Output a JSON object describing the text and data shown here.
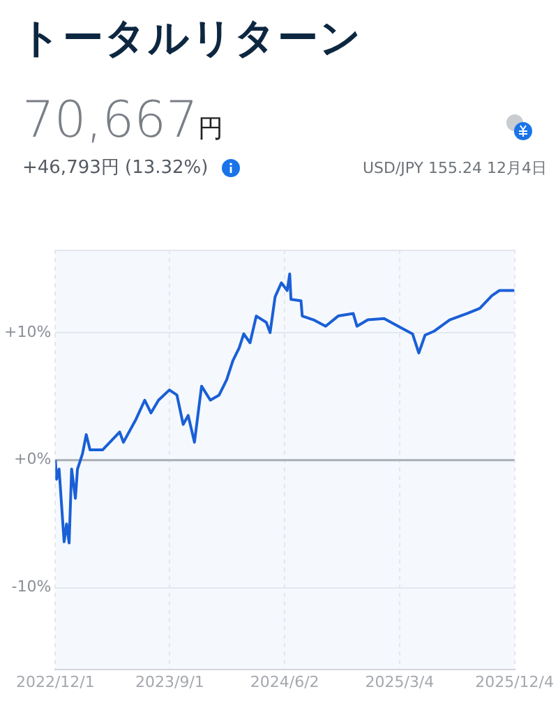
{
  "chart_data": {
    "type": "line",
    "title": "トータルリターン",
    "annotations": [
      "70,667円",
      "+46,793円 (13.32%)",
      "USD/JPY 155.24 12月4日"
    ],
    "x": [
      "2022-12-01",
      "2022-12-04",
      "2022-12-10",
      "2022-12-22",
      "2022-12-28",
      "2023-01-03",
      "2023-01-09",
      "2023-01-18",
      "2023-01-23",
      "2023-02-04",
      "2023-02-13",
      "2023-02-22",
      "2023-03-24",
      "2023-05-04",
      "2023-05-13",
      "2023-06-12",
      "2023-07-03",
      "2023-07-18",
      "2023-08-05",
      "2023-08-31",
      "2023-09-18",
      "2023-10-03",
      "2023-10-15",
      "2023-10-30",
      "2023-11-16",
      "2023-12-07",
      "2023-12-28",
      "2024-01-15",
      "2024-01-30",
      "2024-02-14",
      "2024-02-25",
      "2024-03-11",
      "2024-03-26",
      "2024-04-19",
      "2024-04-28",
      "2024-05-10",
      "2024-05-25",
      "2024-06-08",
      "2024-06-14",
      "2024-06-17",
      "2024-07-11",
      "2024-07-14",
      "2024-08-10",
      "2024-09-08",
      "2024-10-08",
      "2024-11-13",
      "2024-11-22",
      "2024-12-18",
      "2025-01-26",
      "2025-03-06",
      "2025-04-04",
      "2025-04-19",
      "2025-05-04",
      "2025-05-25",
      "2025-07-02",
      "2025-08-13",
      "2025-09-12",
      "2025-10-11",
      "2025-10-29",
      "2025-12-04"
    ],
    "series": [
      {
        "color": "#1a5fd6",
        "values": [
          0,
          -1.5,
          -0.7,
          -6.4,
          -5.0,
          -6.5,
          -0.7,
          -3.0,
          -0.7,
          0.5,
          2.0,
          0.8,
          0.8,
          2.2,
          1.4,
          3.2,
          4.7,
          3.7,
          4.7,
          5.5,
          5.1,
          2.8,
          3.5,
          1.4,
          5.8,
          4.7,
          5.1,
          6.3,
          7.8,
          8.8,
          9.9,
          9.2,
          11.3,
          10.8,
          10.0,
          12.8,
          13.9,
          13.3,
          14.6,
          12.6,
          12.5,
          11.3,
          11.0,
          10.5,
          11.3,
          11.5,
          10.5,
          11.0,
          11.1,
          10.4,
          9.9,
          8.4,
          9.8,
          10.1,
          11.0,
          11.5,
          11.9,
          12.9,
          13.3,
          13.3
        ]
      }
    ],
    "xlim": [
      "2022-12-01",
      "2025-12-04"
    ],
    "xticks": [
      {
        "value": "2022-12-01",
        "label": "2022/12/1"
      },
      {
        "value": "2023-09-01",
        "label": "2023/9/1"
      },
      {
        "value": "2024-06-02",
        "label": "2024/6/2"
      },
      {
        "value": "2025-03-04",
        "label": "2025/3/4"
      },
      {
        "value": "2025-12-04",
        "label": "2025/12/4"
      }
    ],
    "ylim": [
      -16.4,
      16.5
    ],
    "yticks": [
      {
        "value": -10,
        "label": "-10%"
      },
      {
        "value": 0,
        "label": "+0%"
      },
      {
        "value": 10,
        "label": "+10%"
      }
    ],
    "ref_lines": [
      {
        "axis": "y",
        "value": 0,
        "color": "#a9adb4"
      }
    ],
    "grid": true,
    "legend": false,
    "marker": "none",
    "line_style": "solid"
  }
}
